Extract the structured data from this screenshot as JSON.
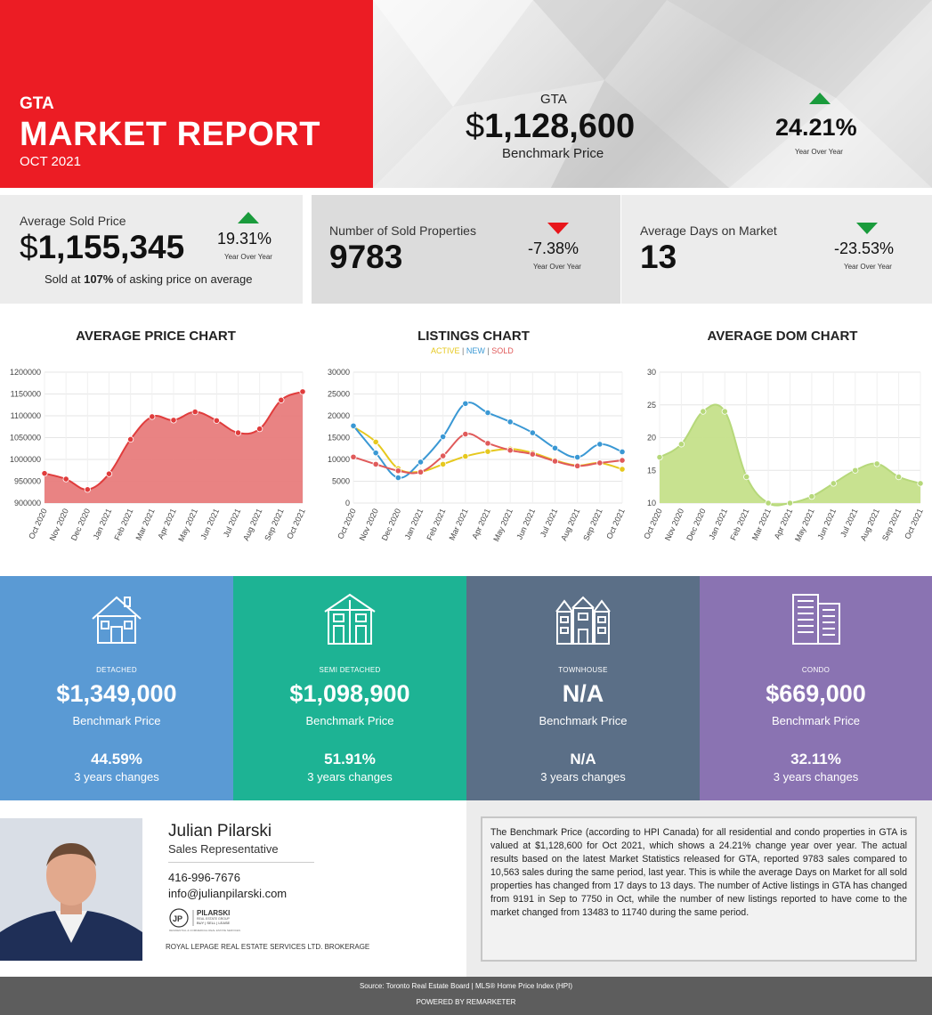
{
  "header": {
    "region": "GTA",
    "title": "MARKET REPORT",
    "date": "OCT 2021",
    "benchmark_region": "GTA",
    "benchmark_dollar": "$",
    "benchmark_price": "1,128,600",
    "benchmark_label": "Benchmark Price",
    "benchmark_change": "24.21%",
    "benchmark_change_label": "Year Over Year",
    "benchmark_direction": "up"
  },
  "stats": {
    "avg_sold": {
      "label": "Average Sold Price",
      "dollar": "$",
      "value": "1,155,345",
      "change": "19.31%",
      "change_label": "Year Over Year",
      "direction": "up",
      "note_prefix": "Sold at ",
      "note_bold": "107%",
      "note_suffix": " of asking price on average"
    },
    "sold_props": {
      "label": "Number of Sold Properties",
      "value": "9783",
      "change": "-7.38%",
      "change_label": "Year Over Year",
      "direction": "down"
    },
    "avg_dom": {
      "label": "Average Days on Market",
      "value": "13",
      "change": "-23.53%",
      "change_label": "Year Over Year",
      "direction": "down"
    }
  },
  "colors": {
    "brand_red": "#ec1c24",
    "up_green": "#1a9b3c",
    "down_red": "#e8161b",
    "down_green": "#1a9b3c",
    "detached": "#5a9ad4",
    "semi_detached": "#1db394",
    "townhouse": "#5b6f87",
    "condo": "#8a73b2",
    "active": "#e6c81e",
    "new": "#3a98d4",
    "sold": "#e05a5a",
    "avg_price_fill": "#e87c7c",
    "dom_fill": "#c5e08a"
  },
  "chart_data": [
    {
      "type": "area",
      "title": "AVERAGE PRICE CHART",
      "categories": [
        "Oct 2020",
        "Nov 2020",
        "Dec 2020",
        "Jan 2021",
        "Feb 2021",
        "Mar 2021",
        "Apr 2021",
        "May 2021",
        "Jun 2021",
        "Jul 2021",
        "Aug 2021",
        "Sep 2021",
        "Oct 2021"
      ],
      "values": [
        968000,
        955000,
        931000,
        967000,
        1046000,
        1098000,
        1090000,
        1109000,
        1089000,
        1061000,
        1070000,
        1136000,
        1155345
      ],
      "ylim": [
        900000,
        1200000
      ],
      "yticks": [
        "1200000",
        "1150000",
        "1100000",
        "1050000",
        "1000000",
        "950000",
        "900000"
      ],
      "grid": true
    },
    {
      "type": "line",
      "title": "LISTINGS CHART",
      "legend": [
        "ACTIVE",
        "NEW",
        "SOLD"
      ],
      "categories": [
        "Oct 2020",
        "Nov 2020",
        "Dec 2020",
        "Jan 2021",
        "Feb 2021",
        "Mar 2021",
        "Apr 2021",
        "May 2021",
        "Jun 2021",
        "Jul 2021",
        "Aug 2021",
        "Sep 2021",
        "Oct 2021"
      ],
      "series": [
        {
          "name": "ACTIVE",
          "values": [
            17500,
            14000,
            7900,
            7200,
            8900,
            10700,
            11800,
            12400,
            11500,
            9800,
            8600,
            9191,
            7750
          ]
        },
        {
          "name": "NEW",
          "values": [
            17700,
            11500,
            5800,
            9400,
            15200,
            22800,
            20700,
            18600,
            16100,
            12600,
            10500,
            13483,
            11740
          ]
        },
        {
          "name": "SOLD",
          "values": [
            10563,
            8900,
            7400,
            7100,
            10800,
            15800,
            13700,
            12100,
            11200,
            9600,
            8500,
            9200,
            9783
          ]
        }
      ],
      "ylim": [
        0,
        30000
      ],
      "yticks": [
        "30000",
        "25000",
        "20000",
        "15000",
        "10000",
        "5000",
        "0"
      ],
      "grid": true
    },
    {
      "type": "area",
      "title": "AVERAGE DOM CHART",
      "categories": [
        "Oct 2020",
        "Nov 2020",
        "Dec 2020",
        "Jan 2021",
        "Feb 2021",
        "Mar 2021",
        "Apr 2021",
        "May 2021",
        "Jun 2021",
        "Jul 2021",
        "Aug 2021",
        "Sep 2021",
        "Oct 2021"
      ],
      "values": [
        17,
        19,
        24,
        24,
        14,
        10,
        10,
        11,
        13,
        15,
        16,
        14,
        13
      ],
      "ylim": [
        10,
        30
      ],
      "yticks": [
        "30",
        "25",
        "20",
        "15",
        "10"
      ],
      "grid": true
    }
  ],
  "legend_separator": " | ",
  "property_types": [
    {
      "type": "DETACHED",
      "price": "$1,349,000",
      "label": "Benchmark Price",
      "change": "44.59%",
      "change_label": "3 years changes",
      "icon": "house-icon"
    },
    {
      "type": "SEMI DETACHED",
      "price": "$1,098,900",
      "label": "Benchmark Price",
      "change": "51.91%",
      "change_label": "3 years changes",
      "icon": "semi-detached-icon"
    },
    {
      "type": "TOWNHOUSE",
      "price": "N/A",
      "label": "Benchmark Price",
      "change": "N/A",
      "change_label": "3 years changes",
      "icon": "townhouse-icon"
    },
    {
      "type": "CONDO",
      "price": "$669,000",
      "label": "Benchmark Price",
      "change": "32.11%",
      "change_label": "3 years changes",
      "icon": "condo-icon"
    }
  ],
  "agent": {
    "name": "Julian Pilarski",
    "role": "Sales Representative",
    "phone": "416-996-7676",
    "email": "info@julianpilarski.com",
    "logo_initials": "JP",
    "logo_name": "PILARSKI",
    "logo_sub": "REAL ESTATE GROUP",
    "logo_tagline": "BUY | SELL | LEASE",
    "logo_fine": "RESIDENTIAL & COMMERCIAL REAL ESTATE SERVICES",
    "brokerage": "ROYAL LEPAGE REAL ESTATE SERVICES LTD. BROKERAGE"
  },
  "summary": "The Benchmark Price (according to HPI Canada) for all residential and condo properties in GTA is valued at $1,128,600 for Oct 2021, which shows a 24.21% change year over year. The actual results based on the latest Market Statistics released for GTA, reported 9783 sales compared to 10,563 sales during the same period, last year. This is while the average Days on Market for all sold properties has changed from 17 days to 13 days. The number of Active listings in GTA has changed from 9191 in Sep to 7750 in Oct, while the number of new listings reported to have come to the market changed from 13483 to 11740 during the same period.",
  "footer": {
    "source": "Source: Toronto Real Estate Board | MLS® Home Price Index (HPI)",
    "powered": "POWERED BY REMARKETER"
  }
}
